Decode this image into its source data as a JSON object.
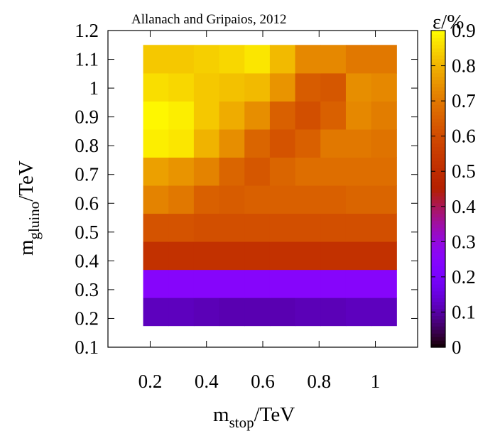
{
  "chart_data": {
    "type": "heatmap",
    "credit": "Allanach and Gripaios, 2012",
    "xlabel": {
      "main": "m",
      "sub": "stop",
      "unit": "/TeV"
    },
    "ylabel": {
      "main": "m",
      "sub": "gluino",
      "unit": "/TeV"
    },
    "colorbar_label": "ε/%",
    "xlim": [
      0.05,
      1.15
    ],
    "ylim": [
      0.1,
      1.2
    ],
    "x_ticks": [
      {
        "value": 0.2,
        "label": "0.2"
      },
      {
        "value": 0.4,
        "label": "0.4"
      },
      {
        "value": 0.6,
        "label": "0.6"
      },
      {
        "value": 0.8,
        "label": "0.8"
      },
      {
        "value": 1.0,
        "label": "1"
      }
    ],
    "y_ticks": [
      {
        "value": 0.1,
        "label": "0.1"
      },
      {
        "value": 0.2,
        "label": "0.2"
      },
      {
        "value": 0.3,
        "label": "0.3"
      },
      {
        "value": 0.4,
        "label": "0.4"
      },
      {
        "value": 0.5,
        "label": "0.5"
      },
      {
        "value": 0.6,
        "label": "0.6"
      },
      {
        "value": 0.7,
        "label": "0.7"
      },
      {
        "value": 0.8,
        "label": "0.8"
      },
      {
        "value": 0.9,
        "label": "0.9"
      },
      {
        "value": 1.0,
        "label": "1"
      },
      {
        "value": 1.1,
        "label": "1.1"
      },
      {
        "value": 1.2,
        "label": "1.2"
      }
    ],
    "colorbar_range": [
      0,
      0.9
    ],
    "colorbar_ticks": [
      {
        "value": 0.0,
        "label": "0"
      },
      {
        "value": 0.1,
        "label": "0.1"
      },
      {
        "value": 0.2,
        "label": "0.2"
      },
      {
        "value": 0.3,
        "label": "0.3"
      },
      {
        "value": 0.4,
        "label": "0.4"
      },
      {
        "value": 0.5,
        "label": "0.5"
      },
      {
        "value": 0.6,
        "label": "0.6"
      },
      {
        "value": 0.7,
        "label": "0.7"
      },
      {
        "value": 0.8,
        "label": "0.8"
      },
      {
        "value": 0.9,
        "label": "0.9"
      }
    ],
    "colormap": "gnuplot rgbformulae 7,5,15",
    "x_centers": [
      0.2,
      0.3,
      0.4,
      0.5,
      0.6,
      0.7,
      0.8,
      0.9,
      1.0,
      1.1
    ],
    "y_centers": [
      0.2,
      0.3,
      0.4,
      0.5,
      0.6,
      0.7,
      0.8,
      0.9,
      1.0,
      1.1
    ],
    "x_cell_width": 0.1,
    "y_cell_height": 0.1,
    "x_data_extent": [
      0.175,
      1.075
    ],
    "y_data_extent": [
      0.175,
      1.15
    ],
    "z": [
      [
        0.12,
        0.12,
        0.115,
        0.11,
        0.11,
        0.11,
        0.115,
        0.115,
        0.12,
        0.12
      ],
      [
        0.25,
        0.25,
        0.25,
        0.25,
        0.25,
        0.25,
        0.25,
        0.25,
        0.25,
        0.25
      ],
      [
        0.52,
        0.52,
        0.52,
        0.52,
        0.52,
        0.52,
        0.52,
        0.52,
        0.52,
        0.52
      ],
      [
        0.62,
        0.62,
        0.61,
        0.61,
        0.61,
        0.61,
        0.61,
        0.61,
        0.61,
        0.61
      ],
      [
        0.72,
        0.7,
        0.65,
        0.64,
        0.65,
        0.65,
        0.65,
        0.65,
        0.66,
        0.66
      ],
      [
        0.77,
        0.75,
        0.72,
        0.66,
        0.63,
        0.66,
        0.68,
        0.68,
        0.68,
        0.68
      ],
      [
        0.88,
        0.87,
        0.8,
        0.74,
        0.66,
        0.62,
        0.65,
        0.7,
        0.7,
        0.69
      ],
      [
        0.89,
        0.88,
        0.83,
        0.79,
        0.74,
        0.65,
        0.61,
        0.65,
        0.73,
        0.71
      ],
      [
        0.86,
        0.85,
        0.83,
        0.82,
        0.81,
        0.75,
        0.64,
        0.63,
        0.74,
        0.73
      ],
      [
        0.83,
        0.83,
        0.84,
        0.85,
        0.87,
        0.81,
        0.73,
        0.73,
        0.7,
        0.7
      ]
    ]
  }
}
